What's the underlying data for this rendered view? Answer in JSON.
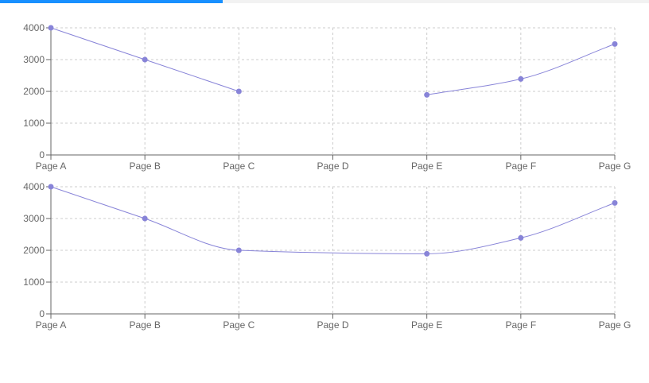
{
  "progress": {
    "value": 0.343
  },
  "colors": {
    "accent": "#8884d8",
    "progress": "#1890ff",
    "grid": "#cccccc",
    "axis": "#666666"
  },
  "chart_data": [
    {
      "type": "line",
      "categories": [
        "Page A",
        "Page B",
        "Page C",
        "Page D",
        "Page E",
        "Page F",
        "Page G"
      ],
      "series": [
        {
          "values": [
            4000,
            3000,
            2000,
            null,
            1890,
            2390,
            3490
          ]
        }
      ],
      "connect_nulls": false,
      "curve": "linear-then-monotone",
      "yticks": [
        0,
        1000,
        2000,
        3000,
        4000
      ],
      "ylim": [
        0,
        4000
      ],
      "grid": true
    },
    {
      "type": "line",
      "categories": [
        "Page A",
        "Page B",
        "Page C",
        "Page D",
        "Page E",
        "Page F",
        "Page G"
      ],
      "series": [
        {
          "values": [
            4000,
            3000,
            2000,
            null,
            1890,
            2390,
            3490
          ]
        }
      ],
      "connect_nulls": true,
      "curve": "monotone",
      "yticks": [
        0,
        1000,
        2000,
        3000,
        4000
      ],
      "ylim": [
        0,
        4000
      ],
      "grid": true
    }
  ]
}
